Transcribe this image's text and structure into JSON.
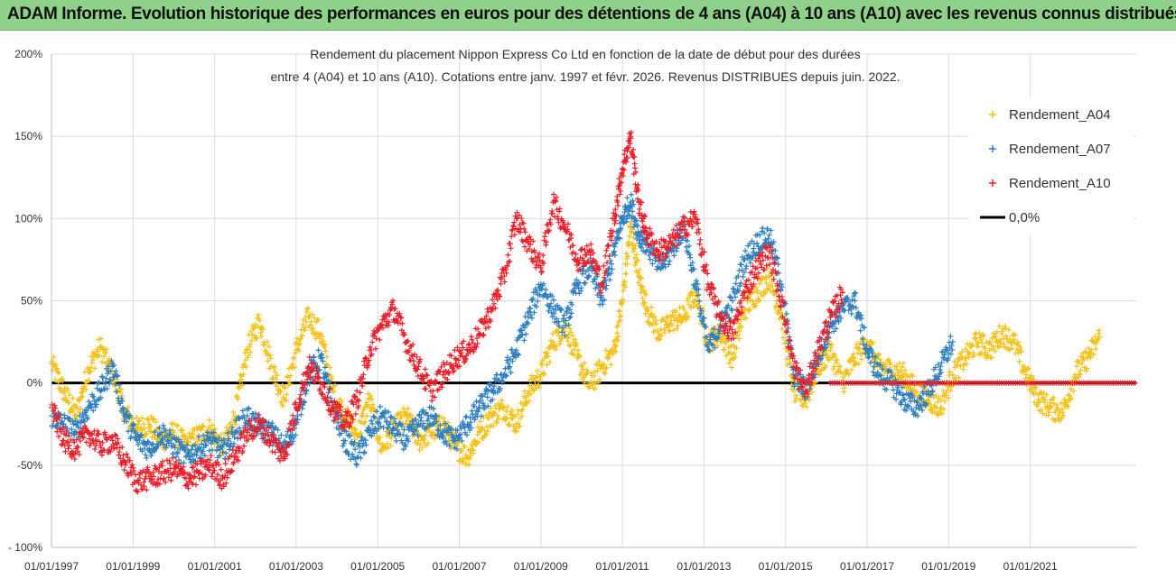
{
  "header": {
    "title": "ADAM Informe. Evolution historique des performances en euros pour des détentions de 4 ans (A04) à 10 ans (A10) avec les revenus connus distribués"
  },
  "chart_data": {
    "type": "scatter",
    "title_line1": "Rendement du placement Nippon Express Co Ltd en fonction de la date de début pour des durées",
    "title_line2": "entre 4 (A04) et 10 ans (A10). Cotations entre janv. 1997 et févr. 2026. Revenus DISTRIBUES depuis juin. 2022.",
    "x_range": [
      1997.0,
      2023.6
    ],
    "ylim": [
      -100,
      200
    ],
    "y_ticks": [
      -100,
      -50,
      0,
      50,
      100,
      150,
      200
    ],
    "y_tick_labels": [
      "- 100%",
      "-50%",
      "0%",
      "50%",
      "100%",
      "150%",
      "200%"
    ],
    "x_ticks": [
      1997,
      1999,
      2001,
      2003,
      2005,
      2007,
      2009,
      2011,
      2013,
      2015,
      2017,
      2019,
      2021
    ],
    "x_tick_labels": [
      "01/01/1997",
      "01/01/1999",
      "01/01/2001",
      "01/01/2003",
      "01/01/2005",
      "01/01/2007",
      "01/01/2009",
      "01/01/2011",
      "01/01/2013",
      "01/01/2015",
      "01/01/2017",
      "01/01/2019",
      "01/01/2021"
    ],
    "grid": true,
    "legend_position": "top-right",
    "series": [
      {
        "name": "Rendement_A04",
        "color": "#f2c21a",
        "marker": "+",
        "x": [
          1997.0,
          1997.3,
          1997.6,
          1997.9,
          1998.2,
          1998.5,
          1998.8,
          1999.1,
          1999.4,
          1999.7,
          2000.0,
          2000.3,
          2000.6,
          2000.9,
          2001.2,
          2001.5,
          2001.8,
          2002.1,
          2002.4,
          2002.7,
          2003.0,
          2003.3,
          2003.6,
          2003.9,
          2004.2,
          2004.5,
          2004.8,
          2005.1,
          2005.4,
          2005.7,
          2006.0,
          2006.3,
          2006.6,
          2006.9,
          2007.2,
          2007.5,
          2007.8,
          2008.1,
          2008.4,
          2008.7,
          2009.0,
          2009.3,
          2009.6,
          2009.9,
          2010.2,
          2010.5,
          2010.8,
          2011.0,
          2011.2,
          2011.4,
          2011.6,
          2011.9,
          2012.2,
          2012.5,
          2012.8,
          2013.1,
          2013.4,
          2013.7,
          2014.0,
          2014.3,
          2014.6,
          2014.9,
          2015.2,
          2015.5,
          2015.8,
          2016.1,
          2016.4,
          2016.7,
          2017.0,
          2017.3,
          2017.6,
          2017.9,
          2018.2,
          2018.5,
          2018.8,
          2019.1,
          2019.4,
          2019.7,
          2020.0,
          2020.3,
          2020.6,
          2020.9,
          2021.2,
          2021.5,
          2021.8,
          2022.1,
          2022.4,
          2022.7
        ],
        "y": [
          12,
          -5,
          -20,
          8,
          22,
          5,
          -18,
          -28,
          -25,
          -35,
          -30,
          -38,
          -32,
          -28,
          -40,
          -20,
          20,
          38,
          10,
          -10,
          20,
          40,
          30,
          -5,
          -20,
          -32,
          -10,
          -40,
          -28,
          -20,
          -35,
          -30,
          -25,
          -38,
          -45,
          -30,
          -20,
          -15,
          -25,
          -5,
          5,
          25,
          35,
          15,
          -2,
          10,
          20,
          50,
          95,
          65,
          45,
          30,
          38,
          40,
          55,
          25,
          30,
          15,
          45,
          55,
          65,
          40,
          -5,
          -10,
          10,
          20,
          0,
          15,
          25,
          10,
          8,
          5,
          -5,
          -10,
          -15,
          5,
          15,
          25,
          20,
          30,
          25,
          5,
          -10,
          -15,
          -18,
          5,
          15,
          28
        ]
      },
      {
        "name": "Rendement_A07",
        "color": "#2f7fc0",
        "marker": "+",
        "x": [
          1997.0,
          1997.3,
          1997.6,
          1997.9,
          1998.2,
          1998.5,
          1998.8,
          1999.1,
          1999.4,
          1999.7,
          2000.0,
          2000.3,
          2000.6,
          2000.9,
          2001.2,
          2001.5,
          2001.8,
          2002.1,
          2002.4,
          2002.7,
          2003.0,
          2003.3,
          2003.6,
          2003.9,
          2004.2,
          2004.5,
          2004.8,
          2005.1,
          2005.4,
          2005.7,
          2006.0,
          2006.3,
          2006.6,
          2006.9,
          2007.2,
          2007.5,
          2007.8,
          2008.1,
          2008.4,
          2008.7,
          2009.0,
          2009.3,
          2009.6,
          2009.9,
          2010.2,
          2010.5,
          2010.8,
          2011.0,
          2011.2,
          2011.4,
          2011.6,
          2011.9,
          2012.2,
          2012.5,
          2012.8,
          2013.1,
          2013.4,
          2013.7,
          2014.0,
          2014.3,
          2014.6,
          2014.9,
          2015.2,
          2015.5,
          2015.8,
          2016.1,
          2016.4,
          2016.7,
          2017.0,
          2017.3,
          2017.6,
          2017.9,
          2018.2,
          2018.5,
          2018.8,
          2019.1
        ],
        "y": [
          -20,
          -25,
          -30,
          -15,
          -5,
          10,
          -20,
          -35,
          -40,
          -30,
          -38,
          -45,
          -40,
          -35,
          -42,
          -30,
          -20,
          -28,
          -30,
          -40,
          -25,
          5,
          15,
          -15,
          -35,
          -45,
          -30,
          -20,
          -28,
          -35,
          -25,
          -20,
          -30,
          -35,
          -25,
          -15,
          -5,
          5,
          20,
          40,
          60,
          45,
          35,
          60,
          70,
          50,
          80,
          100,
          110,
          90,
          85,
          70,
          80,
          95,
          60,
          20,
          35,
          50,
          75,
          85,
          90,
          60,
          5,
          -5,
          15,
          35,
          45,
          50,
          20,
          5,
          0,
          -10,
          -15,
          -5,
          10,
          25
        ]
      },
      {
        "name": "Rendement_A10",
        "color": "#e8202a",
        "marker": "+",
        "x": [
          1997.0,
          1997.3,
          1997.6,
          1997.9,
          1998.2,
          1998.5,
          1998.8,
          1999.1,
          1999.4,
          1999.7,
          2000.0,
          2000.3,
          2000.6,
          2000.9,
          2001.2,
          2001.5,
          2001.8,
          2002.1,
          2002.4,
          2002.7,
          2003.0,
          2003.3,
          2003.6,
          2003.9,
          2004.2,
          2004.5,
          2004.8,
          2005.1,
          2005.4,
          2005.7,
          2006.0,
          2006.3,
          2006.6,
          2006.9,
          2007.2,
          2007.5,
          2007.8,
          2008.1,
          2008.4,
          2008.7,
          2009.0,
          2009.3,
          2009.6,
          2009.9,
          2010.2,
          2010.5,
          2010.8,
          2011.0,
          2011.2,
          2011.4,
          2011.6,
          2011.9,
          2012.2,
          2012.5,
          2012.8,
          2013.1,
          2013.4,
          2013.7,
          2014.0,
          2014.3,
          2014.6,
          2014.9,
          2015.2,
          2015.5,
          2015.8,
          2016.1,
          2016.4
        ],
        "y": [
          -15,
          -35,
          -40,
          -30,
          -38,
          -35,
          -48,
          -60,
          -58,
          -55,
          -52,
          -58,
          -55,
          -50,
          -58,
          -45,
          -30,
          -25,
          -35,
          -45,
          -15,
          10,
          0,
          -15,
          -25,
          -10,
          20,
          35,
          45,
          25,
          10,
          -5,
          5,
          15,
          20,
          30,
          45,
          65,
          100,
          85,
          70,
          110,
          95,
          75,
          80,
          60,
          100,
          130,
          150,
          110,
          90,
          80,
          85,
          95,
          100,
          60,
          40,
          30,
          55,
          70,
          80,
          50,
          10,
          -5,
          20,
          40,
          55
        ]
      },
      {
        "name": "0,0%",
        "color": "#000000",
        "marker": "line",
        "y": 0
      }
    ],
    "flat_zero_segment": {
      "series": "Rendement_A10",
      "x_start": 2016.1,
      "x_end": 2023.6,
      "value": 0
    }
  }
}
